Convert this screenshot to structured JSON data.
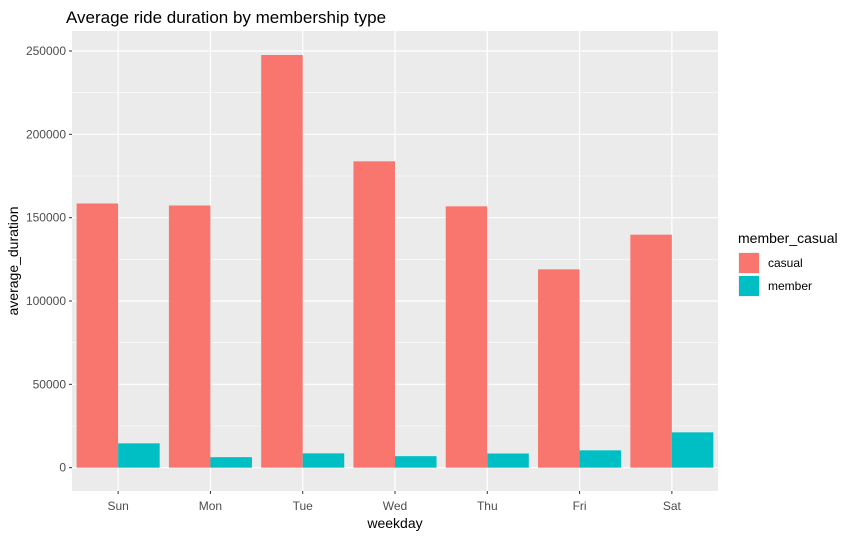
{
  "chart_data": {
    "type": "bar",
    "title": "Average ride duration by membership type",
    "xlabel": "weekday",
    "ylabel": "average_duration",
    "categories": [
      "Sun",
      "Mon",
      "Tue",
      "Wed",
      "Thu",
      "Fri",
      "Sat"
    ],
    "series": [
      {
        "name": "casual",
        "color": "#F8766D",
        "values": [
          158500,
          157300,
          247600,
          183800,
          156800,
          119000,
          139800
        ]
      },
      {
        "name": "member",
        "color": "#00BFC4",
        "values": [
          14600,
          6300,
          8600,
          6900,
          8500,
          10400,
          21200
        ]
      }
    ],
    "ylim": [
      -14000,
      262000
    ],
    "yticks": [
      0,
      50000,
      100000,
      150000,
      200000,
      250000
    ],
    "ytick_labels": [
      "0",
      "50000",
      "100000",
      "150000",
      "200000",
      "250000"
    ],
    "legend": {
      "title": "member_casual",
      "position": "right"
    },
    "grid": true,
    "panel_background": "#EBEBEB"
  }
}
